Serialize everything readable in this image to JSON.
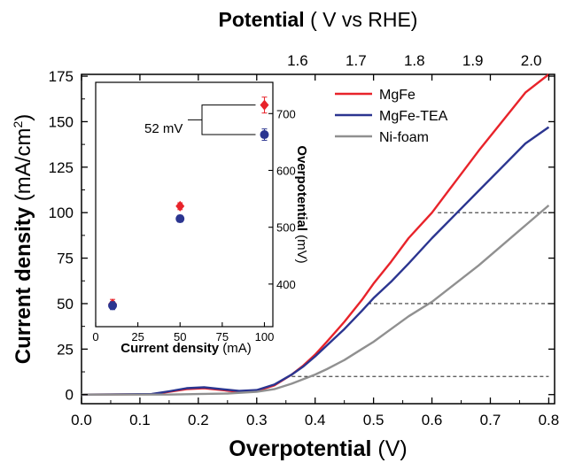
{
  "chart_data": [
    {
      "type": "line",
      "xlabel_bold": "Overpotential",
      "xlabel_unit": "(V)",
      "ylabel_bold": "Current density",
      "ylabel_unit": "(mA/cm",
      "ylabel_sup": "2",
      "ylabel_close": ")",
      "top_label_bold": "Potential",
      "top_label_unit": "( V vs RHE)",
      "xlim": [
        0.0,
        0.81
      ],
      "ylim": [
        -5,
        176
      ],
      "xticks": [
        "0.0",
        "0.1",
        "0.2",
        "0.3",
        "0.4",
        "0.5",
        "0.6",
        "0.7",
        "0.8"
      ],
      "yticks": [
        "0",
        "25",
        "50",
        "75",
        "100",
        "125",
        "150",
        "175"
      ],
      "top_xticks": [
        "1.6",
        "1.7",
        "1.8",
        "1.9",
        "2.0"
      ],
      "top_offset": 1.23,
      "legend_position": "top-right",
      "series": [
        {
          "name": "MgFe",
          "color": "#e8232a",
          "x": [
            0,
            0.12,
            0.15,
            0.18,
            0.21,
            0.24,
            0.27,
            0.3,
            0.33,
            0.36,
            0.38,
            0.4,
            0.42,
            0.45,
            0.48,
            0.5,
            0.53,
            0.56,
            0.6,
            0.64,
            0.68,
            0.72,
            0.76,
            0.8
          ],
          "y": [
            0,
            0.2,
            1.5,
            3,
            3.5,
            2.5,
            1.5,
            2,
            5,
            11,
            16,
            22,
            29,
            40,
            52,
            61,
            73,
            86,
            100,
            117,
            134,
            150,
            166,
            176
          ]
        },
        {
          "name": "MgFe-TEA",
          "color": "#2b3590",
          "x": [
            0,
            0.12,
            0.15,
            0.18,
            0.21,
            0.24,
            0.27,
            0.3,
            0.33,
            0.36,
            0.38,
            0.4,
            0.42,
            0.45,
            0.48,
            0.5,
            0.53,
            0.56,
            0.6,
            0.64,
            0.68,
            0.72,
            0.76,
            0.8
          ],
          "y": [
            0,
            0.3,
            1.8,
            3.5,
            4,
            3,
            2,
            2.5,
            5.5,
            11,
            15.5,
            21,
            27,
            36,
            46,
            53,
            62,
            72,
            86,
            99,
            112,
            125,
            138,
            147
          ]
        },
        {
          "name": "Ni-foam",
          "color": "#909090",
          "x": [
            0,
            0.15,
            0.2,
            0.25,
            0.3,
            0.33,
            0.36,
            0.38,
            0.4,
            0.42,
            0.45,
            0.48,
            0.5,
            0.53,
            0.56,
            0.6,
            0.64,
            0.68,
            0.72,
            0.76,
            0.8
          ],
          "y": [
            0,
            0,
            0.3,
            0.6,
            1.5,
            3,
            6,
            8.5,
            11,
            14,
            19,
            25,
            29,
            36,
            43,
            51,
            61,
            71,
            82,
            93,
            104
          ]
        }
      ],
      "reference_lines": [
        {
          "y": 10,
          "x_from": 0.36,
          "x_to": 0.8
        },
        {
          "y": 50,
          "x_from": 0.49,
          "x_to": 0.8
        },
        {
          "y": 100,
          "x_from": 0.61,
          "x_to": 0.8
        }
      ]
    },
    {
      "type": "scatter",
      "xlabel_bold": "Current density",
      "xlabel_unit": "(mA)",
      "ylabel_bold": "Overpotential",
      "ylabel_unit": "(mV)",
      "xlim": [
        0,
        105
      ],
      "ylim": [
        325,
        755
      ],
      "xticks": [
        "0",
        "25",
        "50",
        "75",
        "100"
      ],
      "yticks": [
        "400",
        "500",
        "600",
        "700"
      ],
      "series": [
        {
          "name": "MgFe",
          "color": "#e8232a",
          "marker": "diamond",
          "x": [
            10,
            50,
            100
          ],
          "y": [
            365,
            537,
            715
          ],
          "err": [
            8,
            6,
            14
          ]
        },
        {
          "name": "MgFe-TEA",
          "color": "#2b3590",
          "marker": "circle",
          "x": [
            10,
            50,
            100
          ],
          "y": [
            362,
            515,
            663
          ],
          "err": [
            7,
            6,
            10
          ]
        }
      ],
      "annotation": "52 mV"
    }
  ]
}
